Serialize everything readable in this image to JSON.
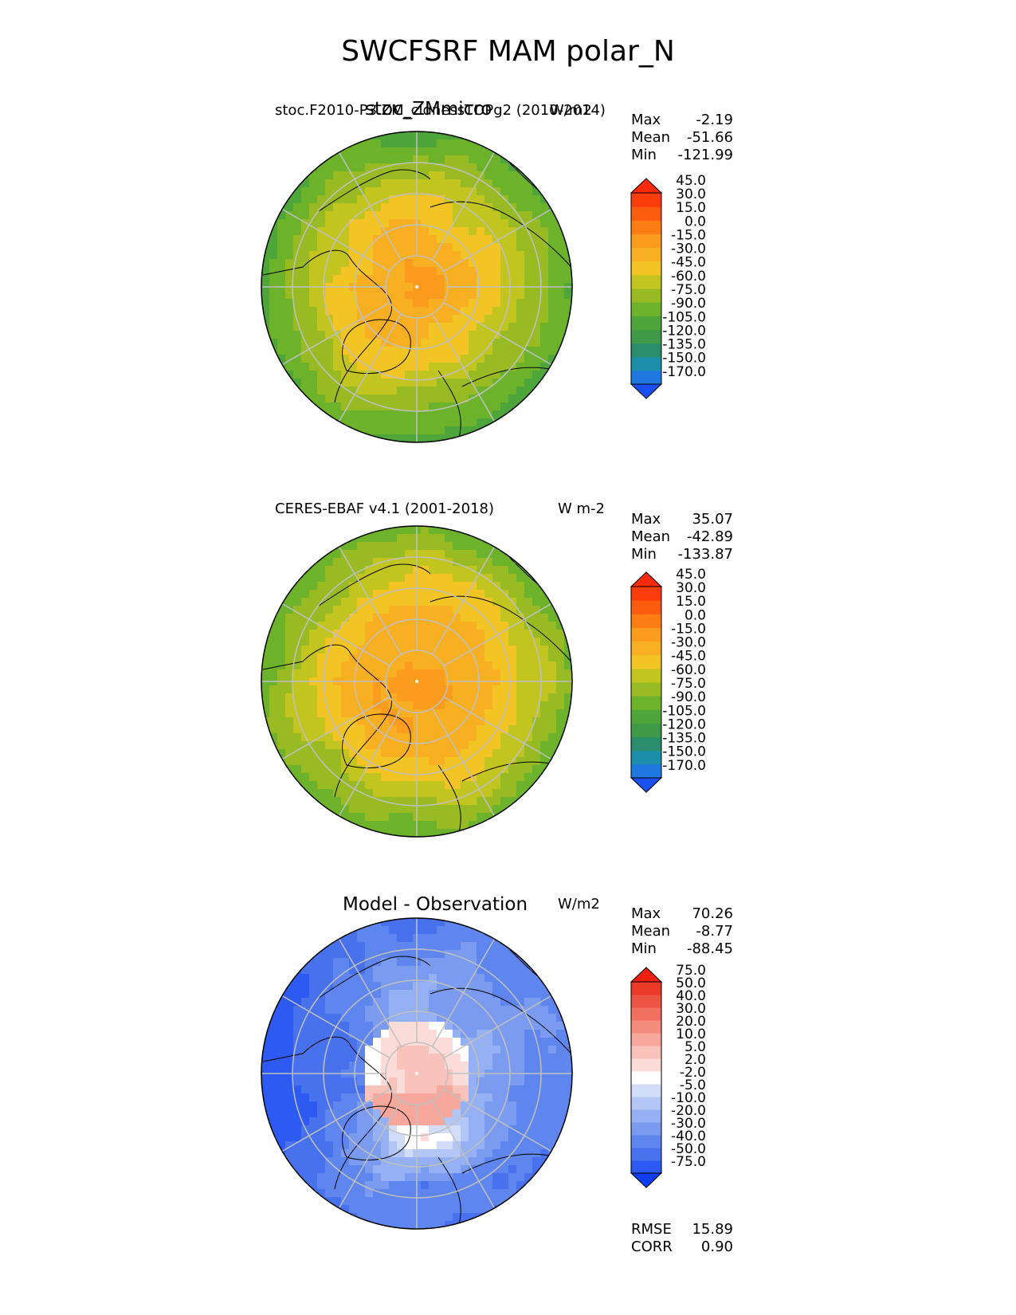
{
  "title": "SWCFSRF MAM polar_N",
  "chart_data": [
    {
      "type": "heatmap",
      "projection": "north-polar-stereographic",
      "left_title": "stoc.F2010-P3.ZM_cldnessTOPg2 (2010-2014)",
      "center_title": "stoc_ZMmicro",
      "units": "W/m2",
      "stats": {
        "max": "-2.19",
        "mean": "-51.66",
        "min": "-121.99"
      },
      "colorbar": {
        "levels": [
          "-170.0",
          "-150.0",
          "-135.0",
          "-120.0",
          "-105.0",
          "-90.0",
          "-75.0",
          "-60.0",
          "-45.0",
          "-30.0",
          "-15.0",
          "0.0",
          "15.0",
          "30.0",
          "45.0"
        ],
        "colors": [
          "#1a50f2",
          "#1f78e0",
          "#1b8faa",
          "#2a8e6c",
          "#3f9a48",
          "#4ea63a",
          "#6cb22a",
          "#98bb24",
          "#c2c420",
          "#f2c524",
          "#f8b022",
          "#fb9c1f",
          "#fb7d13",
          "#fb5c0e",
          "#fb3c0b",
          "#fc2a08"
        ]
      }
    },
    {
      "type": "heatmap",
      "projection": "north-polar-stereographic",
      "left_title": "CERES-EBAF v4.1 (2001-2018)",
      "center_title": "",
      "units": "W m-2",
      "stats": {
        "max": "35.07",
        "mean": "-42.89",
        "min": "-133.87"
      },
      "colorbar": {
        "levels": [
          "-170.0",
          "-150.0",
          "-135.0",
          "-120.0",
          "-105.0",
          "-90.0",
          "-75.0",
          "-60.0",
          "-45.0",
          "-30.0",
          "-15.0",
          "0.0",
          "15.0",
          "30.0",
          "45.0"
        ],
        "colors": [
          "#1a50f2",
          "#1f78e0",
          "#1b8faa",
          "#2a8e6c",
          "#3f9a48",
          "#4ea63a",
          "#6cb22a",
          "#98bb24",
          "#c2c420",
          "#f2c524",
          "#f8b022",
          "#fb9c1f",
          "#fb7d13",
          "#fb5c0e",
          "#fb3c0b",
          "#fc2a08"
        ]
      }
    },
    {
      "type": "heatmap",
      "projection": "north-polar-stereographic",
      "left_title": "",
      "center_title": "Model - Observation",
      "units": "W/m2",
      "stats": {
        "max": "70.26",
        "mean": "-8.77",
        "min": "-88.45",
        "rmse": "15.89",
        "corr": "0.90"
      },
      "colorbar": {
        "levels": [
          "-75.0",
          "-50.0",
          "-40.0",
          "-30.0",
          "-20.0",
          "-10.0",
          "-5.0",
          "-2.0",
          "2.0",
          "5.0",
          "10.0",
          "20.0",
          "30.0",
          "40.0",
          "50.0",
          "75.0"
        ],
        "colors": [
          "#0f3ef5",
          "#2c5af2",
          "#4871ee",
          "#5f86ee",
          "#7a9bf0",
          "#95b0f3",
          "#b3c6f6",
          "#d2ddfa",
          "#ffffff",
          "#fbdcd8",
          "#f9c2bb",
          "#f7a79c",
          "#f48c7d",
          "#f17060",
          "#ee5444",
          "#ec3a28",
          "#f02010"
        ]
      }
    }
  ],
  "labels": {
    "max": "Max",
    "mean": "Mean",
    "min": "Min",
    "rmse": "RMSE",
    "corr": "CORR"
  }
}
